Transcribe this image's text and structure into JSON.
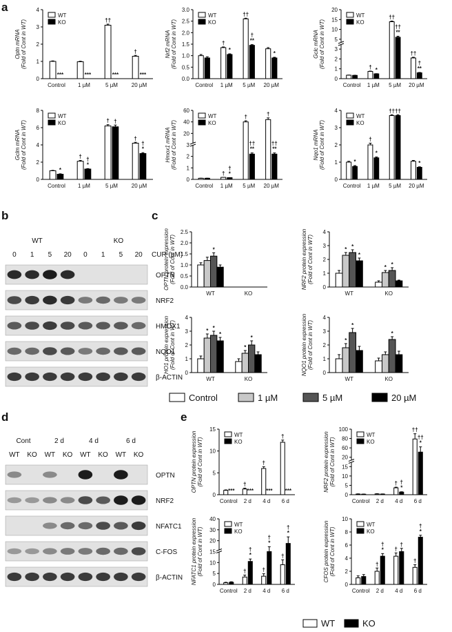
{
  "panels": [
    "a",
    "b",
    "c",
    "d",
    "e"
  ],
  "chart_data": [
    {
      "id": "a1",
      "type": "bar",
      "ylabel": [
        "Optn mRNA",
        "(Fold of Cont in WT)"
      ],
      "categories": [
        "Control",
        "1 µM",
        "5 µM",
        "20 µM"
      ],
      "series": [
        {
          "name": "WT",
          "values": [
            1.0,
            0.98,
            3.1,
            1.3
          ],
          "errors": [
            0.03,
            0.03,
            0.06,
            0.05
          ]
        },
        {
          "name": "KO",
          "values": [
            0.0,
            0.0,
            0.0,
            0.0
          ],
          "errors": [
            0,
            0,
            0,
            0
          ]
        }
      ],
      "ylim": [
        0,
        4
      ],
      "yticks": [
        "0",
        "1",
        "2",
        "3",
        "4"
      ],
      "annot": [
        [
          "",
          "***"
        ],
        [
          "",
          "***"
        ],
        [
          "††",
          "***"
        ],
        [
          "†",
          "***"
        ]
      ]
    },
    {
      "id": "a2",
      "type": "bar",
      "ylabel": [
        "Nrf2 mRNA",
        "(Fold of Cont in WT)"
      ],
      "categories": [
        "Control",
        "1 µM",
        "5 µM",
        "20 µM"
      ],
      "series": [
        {
          "name": "WT",
          "values": [
            1.0,
            1.35,
            2.6,
            1.3
          ],
          "errors": [
            0.05,
            0.03,
            0.03,
            0.05
          ]
        },
        {
          "name": "KO",
          "values": [
            0.9,
            1.05,
            1.45,
            0.9
          ],
          "errors": [
            0.05,
            0.03,
            0.03,
            0.03
          ]
        }
      ],
      "ylim": [
        0,
        3
      ],
      "yticks": [
        "0.0",
        "0.5",
        "1.0",
        "1.5",
        "2.0",
        "2.5",
        "3.0"
      ],
      "annot": [
        [
          "",
          ""
        ],
        [
          "†",
          "*"
        ],
        [
          "††",
          "†\n**"
        ],
        [
          "",
          "*"
        ]
      ]
    },
    {
      "id": "a3",
      "type": "bar",
      "ylabel": [
        "Gclc mRNA",
        "(Fold of Cont in WT)"
      ],
      "categories": [
        "Control",
        "1 µM",
        "5 µM",
        "20 µM"
      ],
      "series": [
        {
          "name": "WT",
          "values": [
            1.0,
            2.1,
            16.5,
            6.0
          ],
          "errors": [
            0.05,
            0.1,
            0.2,
            0.2
          ]
        },
        {
          "name": "KO",
          "values": [
            0.95,
            1.4,
            12.0,
            1.7
          ],
          "errors": [
            0.05,
            0.05,
            0.3,
            0.1
          ]
        }
      ],
      "ylim": [
        0,
        20
      ],
      "yticks": [
        "0",
        "1",
        "2",
        "3",
        "5",
        "10",
        "15",
        "20"
      ],
      "broken": true,
      "annot": [
        [
          "",
          ""
        ],
        [
          "†",
          "*"
        ],
        [
          "††",
          "††\n**"
        ],
        [
          "††",
          "†\n**"
        ]
      ]
    },
    {
      "id": "a4",
      "type": "bar",
      "ylabel": [
        "Gclm mRNA",
        "(Fold of Cont in WT)"
      ],
      "categories": [
        "Control",
        "1 µM",
        "5 µM",
        "20 µM"
      ],
      "series": [
        {
          "name": "WT",
          "values": [
            1.0,
            2.1,
            6.2,
            4.2
          ],
          "errors": [
            0.05,
            0.1,
            0.15,
            0.1
          ]
        },
        {
          "name": "KO",
          "values": [
            0.6,
            1.2,
            6.1,
            3.0
          ],
          "errors": [
            0.05,
            0.05,
            0.2,
            0.1
          ]
        }
      ],
      "ylim": [
        0,
        8
      ],
      "yticks": [
        "0",
        "2",
        "4",
        "6",
        "8"
      ],
      "annot": [
        [
          "",
          "*"
        ],
        [
          "†",
          "†\n*"
        ],
        [
          "†",
          "†"
        ],
        [
          "†",
          "†\n*"
        ]
      ]
    },
    {
      "id": "a5",
      "type": "bar",
      "ylabel": [
        "Hmox1 mRNA",
        "(Fold of Cont in WT)"
      ],
      "categories": [
        "Control",
        "1 µM",
        "5 µM",
        "20 µM"
      ],
      "series": [
        {
          "name": "WT",
          "values": [
            1.0,
            1.75,
            50,
            52
          ],
          "errors": [
            0.05,
            0.05,
            1.0,
            1.5
          ]
        },
        {
          "name": "KO",
          "values": [
            1.0,
            1.5,
            22,
            22
          ],
          "errors": [
            0.05,
            0.05,
            1.0,
            1.0
          ]
        }
      ],
      "ylim": [
        0,
        60
      ],
      "yticks": [
        "0",
        "1",
        "2",
        "3",
        "20",
        "40",
        "60"
      ],
      "broken": true,
      "annot": [
        [
          "",
          ""
        ],
        [
          "†",
          "†\n*"
        ],
        [
          "†",
          "††\n**"
        ],
        [
          "†",
          "††\n**"
        ]
      ]
    },
    {
      "id": "a6",
      "type": "bar",
      "ylabel": [
        "Nqo1 mRNA",
        "(Fold of Cont in WT)"
      ],
      "categories": [
        "Control",
        "1 µM",
        "5 µM",
        "20 µM"
      ],
      "series": [
        {
          "name": "WT",
          "values": [
            1.0,
            2.0,
            3.7,
            1.05
          ],
          "errors": [
            0.05,
            0.1,
            0.05,
            0.05
          ]
        },
        {
          "name": "KO",
          "values": [
            0.75,
            1.25,
            3.7,
            0.7
          ],
          "errors": [
            0.05,
            0.05,
            0.05,
            0.03
          ]
        }
      ],
      "ylim": [
        0,
        4
      ],
      "yticks": [
        "0",
        "1",
        "2",
        "3",
        "4"
      ],
      "annot": [
        [
          "",
          "*"
        ],
        [
          "†",
          "*"
        ],
        [
          "††",
          "††"
        ],
        [
          "",
          "*"
        ]
      ]
    },
    {
      "id": "c1",
      "type": "bar",
      "ylabel": [
        "OPTN protein expression",
        "(Fold of Cont in WT)"
      ],
      "groups": [
        "WT",
        "KO"
      ],
      "values": [
        [
          1.0,
          1.2,
          1.4,
          0.9
        ],
        [
          0,
          0,
          0,
          0
        ]
      ],
      "errors": [
        [
          0.1,
          0.15,
          0.15,
          0.1
        ],
        [
          0,
          0,
          0,
          0
        ]
      ],
      "ylim": [
        0,
        2.5
      ],
      "yticks": [
        "0.0",
        "0.5",
        "1.0",
        "1.5",
        "2.0",
        "2.5"
      ],
      "annot": [
        [
          "",
          "",
          "*",
          ""
        ],
        [
          "",
          "",
          "",
          ""
        ]
      ]
    },
    {
      "id": "c2",
      "type": "bar",
      "ylabel": [
        "NRF2 protein expression",
        "(Fold of Cont in WT)"
      ],
      "groups": [
        "WT",
        "KO"
      ],
      "values": [
        [
          1.0,
          2.3,
          2.5,
          1.9
        ],
        [
          0.35,
          1.05,
          1.2,
          0.45
        ]
      ],
      "errors": [
        [
          0.2,
          0.2,
          0.2,
          0.2
        ],
        [
          0.1,
          0.15,
          0.2,
          0.05
        ]
      ],
      "ylim": [
        0,
        4
      ],
      "yticks": [
        "0",
        "1",
        "2",
        "3",
        "4"
      ],
      "annot": [
        [
          "",
          "*",
          "*",
          "*"
        ],
        [
          "",
          "*",
          "*",
          ""
        ]
      ]
    },
    {
      "id": "c3",
      "type": "bar",
      "ylabel": [
        "HO1 protein expression",
        "(Fold of Cont in WT)"
      ],
      "groups": [
        "WT",
        "KO"
      ],
      "values": [
        [
          1.0,
          2.5,
          2.7,
          2.3
        ],
        [
          0.8,
          1.4,
          2.0,
          1.3
        ]
      ],
      "errors": [
        [
          0.2,
          0.3,
          0.3,
          0.25
        ],
        [
          0.2,
          0.2,
          0.3,
          0.2
        ]
      ],
      "ylim": [
        0,
        4
      ],
      "yticks": [
        "0",
        "1",
        "2",
        "3",
        "4"
      ],
      "annot": [
        [
          "",
          "*",
          "*",
          "*"
        ],
        [
          "",
          "*",
          "*",
          ""
        ]
      ]
    },
    {
      "id": "c4",
      "type": "bar",
      "ylabel": [
        "NQO1 protein expression",
        "(Fold of Cont in WT)"
      ],
      "groups": [
        "WT",
        "KO"
      ],
      "values": [
        [
          1.0,
          1.8,
          2.9,
          1.6
        ],
        [
          0.85,
          1.3,
          2.4,
          1.3
        ]
      ],
      "errors": [
        [
          0.3,
          0.3,
          0.3,
          0.3
        ],
        [
          0.2,
          0.2,
          0.2,
          0.25
        ]
      ],
      "ylim": [
        0,
        4
      ],
      "yticks": [
        "0",
        "1",
        "2",
        "3",
        "4"
      ],
      "annot": [
        [
          "",
          "*",
          "*",
          ""
        ],
        [
          "",
          "",
          "*",
          ""
        ]
      ]
    },
    {
      "id": "e1",
      "type": "bar",
      "ylabel": [
        "OPTN protein expression",
        "(Fold of Cont in WT)"
      ],
      "categories": [
        "Control",
        "2 d",
        "4 d",
        "6 d"
      ],
      "series": [
        {
          "name": "WT",
          "values": [
            1.0,
            1.3,
            6.0,
            12.0
          ],
          "errors": [
            0.1,
            0.2,
            0.4,
            0.5
          ]
        },
        {
          "name": "KO",
          "values": [
            0,
            0,
            0,
            0
          ],
          "errors": [
            0,
            0,
            0,
            0
          ]
        }
      ],
      "ylim": [
        0,
        15
      ],
      "yticks": [
        "0",
        "5",
        "10",
        "15"
      ],
      "annot": [
        [
          "",
          "***"
        ],
        [
          "†",
          "***"
        ],
        [
          "†",
          "***"
        ],
        [
          "†",
          "***"
        ]
      ]
    },
    {
      "id": "e2",
      "type": "bar",
      "ylabel": [
        "NRF2 protein expression",
        "(Fold of Cont in WT)"
      ],
      "categories": [
        "Control",
        "2 d",
        "4 d",
        "6 d"
      ],
      "series": [
        {
          "name": "WT",
          "values": [
            1.0,
            1.2,
            10.5,
            85
          ],
          "errors": [
            0.3,
            0.3,
            1.0,
            8
          ]
        },
        {
          "name": "KO",
          "values": [
            0.8,
            1.0,
            4.0,
            65
          ],
          "errors": [
            0.2,
            0.2,
            0.5,
            8
          ]
        }
      ],
      "ylim": [
        0,
        100
      ],
      "yticks": [
        "0",
        "5",
        "10",
        "15",
        "20",
        "60",
        "80",
        "100"
      ],
      "broken": true,
      "annot": [
        [
          "",
          ""
        ],
        [
          "",
          ""
        ],
        [
          "†",
          "†\n*"
        ],
        [
          "††",
          "††\n*"
        ]
      ]
    },
    {
      "id": "e3",
      "type": "bar",
      "ylabel": [
        "NFATC1 protein expression",
        "(Fold of Cont in WT)"
      ],
      "categories": [
        "Control",
        "2 d",
        "4 d",
        "6 d"
      ],
      "series": [
        {
          "name": "WT",
          "values": [
            1.0,
            4.5,
            5.0,
            12.0
          ],
          "errors": [
            0.3,
            1.2,
            1.5,
            3.0
          ]
        },
        {
          "name": "KO",
          "values": [
            1.3,
            14.0,
            20.0,
            25.0
          ],
          "errors": [
            0.3,
            1.5,
            3.0,
            4.0
          ]
        }
      ],
      "ylim": [
        0,
        40
      ],
      "yticks": [
        "0",
        "5",
        "10",
        "15",
        "20",
        "30",
        "40"
      ],
      "broken": true,
      "annot": [
        [
          "",
          ""
        ],
        [
          "†",
          "†\n*"
        ],
        [
          "†",
          "†\n*"
        ],
        [
          "†",
          "†\n*"
        ]
      ]
    },
    {
      "id": "e4",
      "type": "bar",
      "ylabel": [
        "CFOS protein expression",
        "(Fold of Cont in WT)"
      ],
      "categories": [
        "Control",
        "2 d",
        "4 d",
        "6 d"
      ],
      "series": [
        {
          "name": "WT",
          "values": [
            1.0,
            2.0,
            4.3,
            2.6
          ],
          "errors": [
            0.3,
            0.5,
            0.5,
            0.4
          ]
        },
        {
          "name": "KO",
          "values": [
            1.2,
            4.3,
            5.0,
            7.2
          ],
          "errors": [
            0.3,
            0.4,
            0.5,
            0.3
          ]
        }
      ],
      "ylim": [
        0,
        10
      ],
      "yticks": [
        "0",
        "2",
        "4",
        "6",
        "8",
        "10"
      ],
      "annot": [
        [
          "",
          ""
        ],
        [
          "†",
          "†\n*"
        ],
        [
          "†",
          "†"
        ],
        [
          "†",
          "†\n*"
        ]
      ]
    }
  ],
  "legend_wtko": [
    "WT",
    "KO"
  ],
  "legend_c": [
    "Control",
    "1 µM",
    "5 µM",
    "20 µM"
  ],
  "legend_e": [
    "WT",
    "KO"
  ],
  "blot_b": {
    "group_labels": [
      "WT",
      "KO"
    ],
    "lane_labels": [
      "0",
      "1",
      "5",
      "20",
      "0",
      "1",
      "5",
      "20"
    ],
    "cur_label": "CUR (µM)",
    "proteins": [
      "OPTN",
      "NRF2",
      "HMOX1",
      "NQO1",
      "β-ACTIN"
    ]
  },
  "blot_d": {
    "group_labels": [
      "Cont",
      "2 d",
      "4 d",
      "6 d"
    ],
    "lane_labels": [
      "WT",
      "KO",
      "WT",
      "KO",
      "WT",
      "KO",
      "WT",
      "KO"
    ],
    "proteins": [
      "OPTN",
      "NRF2",
      "NFATC1",
      "C-FOS",
      "β-ACTIN"
    ]
  }
}
